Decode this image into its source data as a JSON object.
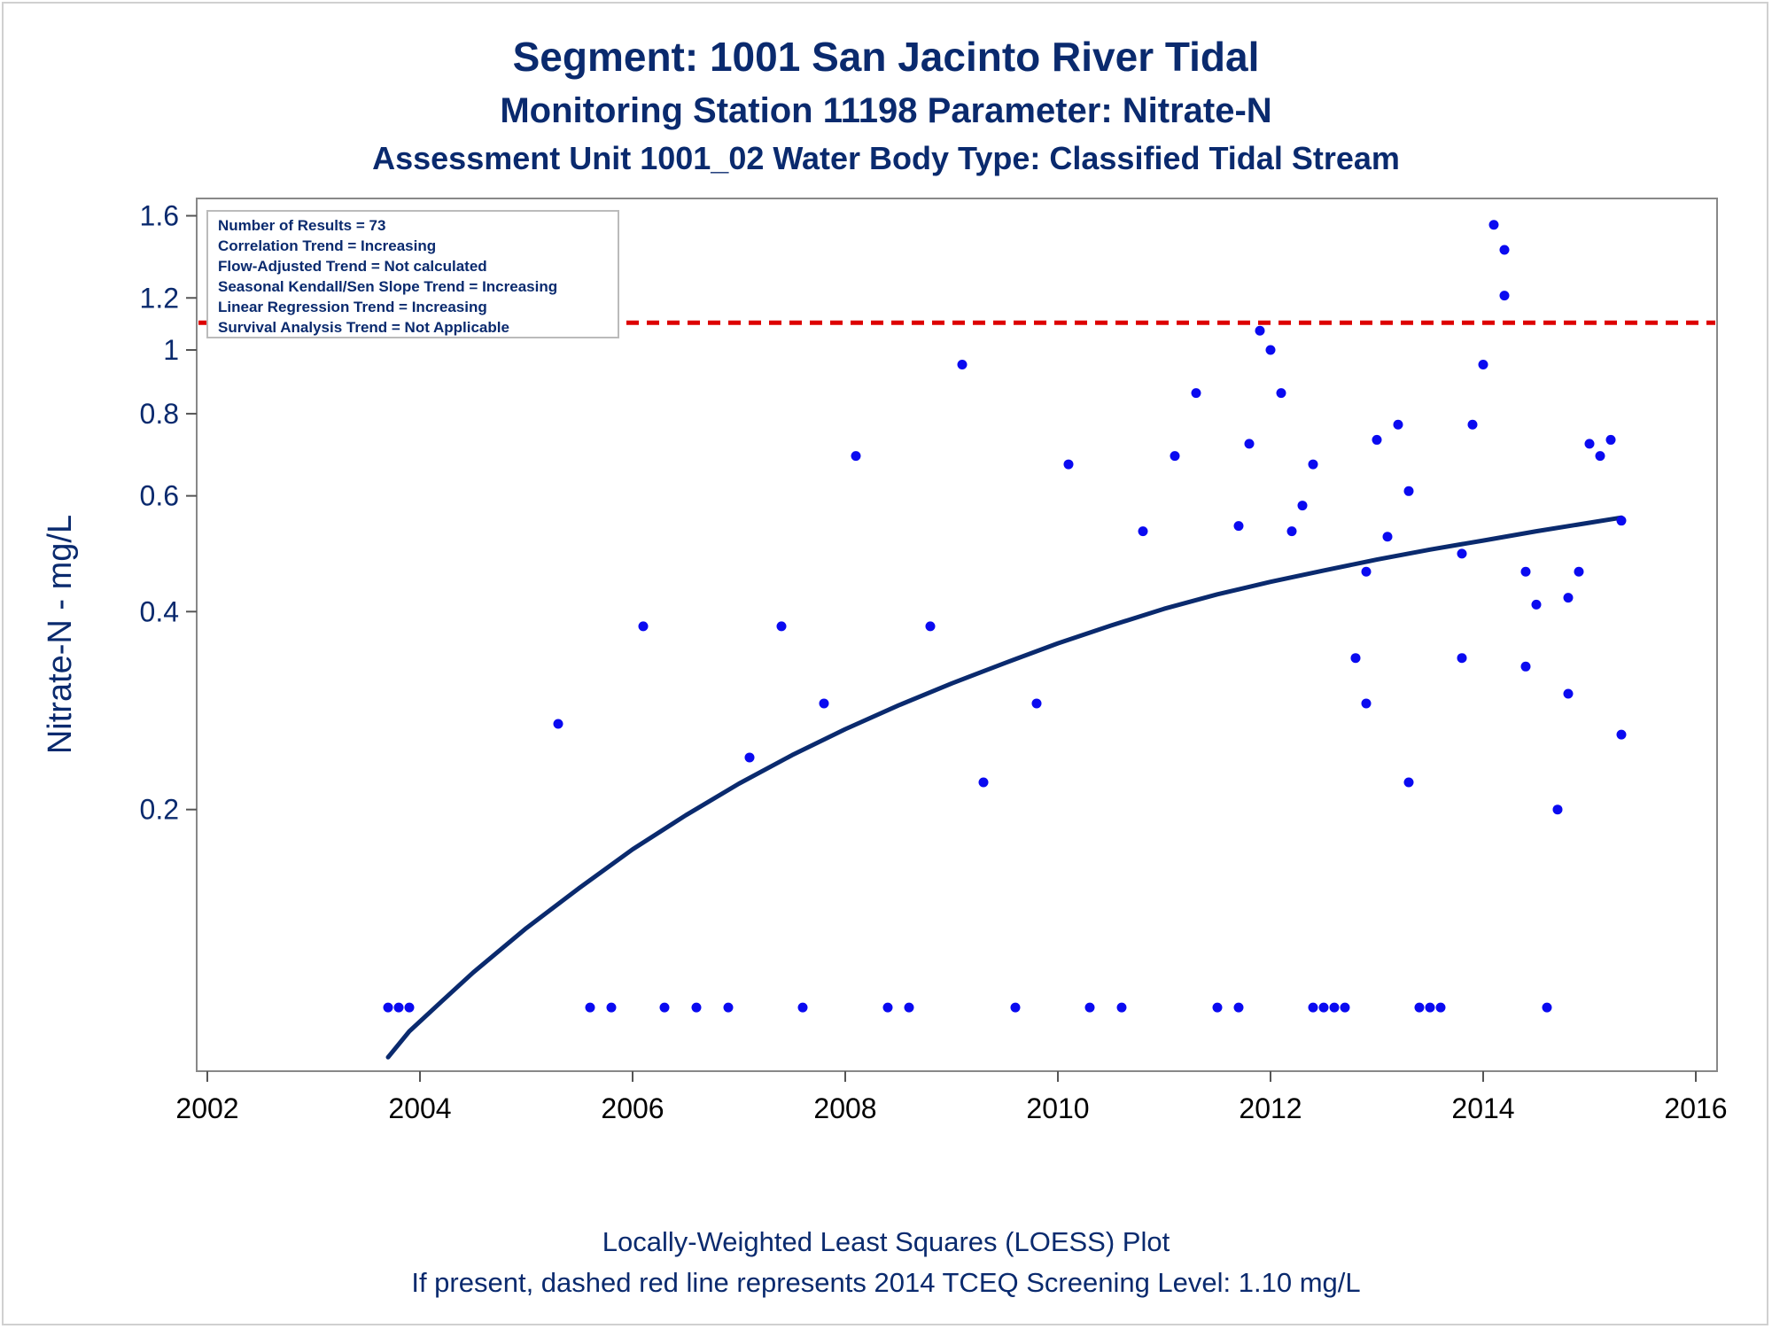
{
  "chart_data": {
    "type": "scatter",
    "title": "Segment: 1001  San Jacinto River Tidal",
    "subtitle": "Monitoring Station 11198 Parameter: Nitrate-N",
    "subtitle2": "Assessment Unit 1001_02   Water Body Type: Classified Tidal Stream",
    "ylabel": "Nitrate-N - mg/L",
    "xlabel": "",
    "x_scale": "linear",
    "y_scale": "log",
    "xlim": [
      2001.9,
      2016.2
    ],
    "ylim": [
      0.08,
      1.7
    ],
    "x_ticks": [
      2002,
      2004,
      2006,
      2008,
      2010,
      2012,
      2014,
      2016
    ],
    "x_tick_labels": [
      "2002",
      "2004",
      "2006",
      "2008",
      "2010",
      "2012",
      "2014",
      "2016"
    ],
    "y_ticks": [
      0.2,
      0.4,
      0.6,
      0.8,
      1.0,
      1.2,
      1.6
    ],
    "y_tick_labels": [
      "0.2",
      "0.4",
      "0.6",
      "0.8",
      "1",
      "1.2",
      "1.6"
    ],
    "grid": false,
    "legend_placement": "top-left",
    "stats_box": [
      "Number of Results = 73",
      "Correlation Trend = Increasing",
      "Flow-Adjusted Trend = Not calculated",
      "Seasonal Kendall/Sen Slope Trend = Increasing",
      "Linear Regression Trend = Increasing",
      "Survival Analysis Trend = Not Applicable"
    ],
    "reference_line": {
      "y": 1.1,
      "color": "#dd0000",
      "style": "dashed"
    },
    "series": [
      {
        "type": "scatter",
        "color": "#0a0af0",
        "points": [
          [
            2003.7,
            0.1
          ],
          [
            2003.8,
            0.1
          ],
          [
            2003.9,
            0.1
          ],
          [
            2005.3,
            0.27
          ],
          [
            2005.6,
            0.1
          ],
          [
            2005.8,
            0.1
          ],
          [
            2006.1,
            0.38
          ],
          [
            2006.3,
            0.1
          ],
          [
            2006.6,
            0.1
          ],
          [
            2006.9,
            0.1
          ],
          [
            2007.1,
            0.24
          ],
          [
            2007.4,
            0.38
          ],
          [
            2007.6,
            0.1
          ],
          [
            2007.8,
            0.29
          ],
          [
            2008.1,
            0.69
          ],
          [
            2008.4,
            0.1
          ],
          [
            2008.6,
            0.1
          ],
          [
            2008.8,
            0.38
          ],
          [
            2009.1,
            0.95
          ],
          [
            2009.3,
            0.22
          ],
          [
            2009.6,
            0.1
          ],
          [
            2009.8,
            0.29
          ],
          [
            2010.1,
            0.67
          ],
          [
            2010.3,
            0.1
          ],
          [
            2010.6,
            0.1
          ],
          [
            2010.8,
            0.53
          ],
          [
            2011.1,
            0.69
          ],
          [
            2011.3,
            0.86
          ],
          [
            2011.5,
            0.1
          ],
          [
            2011.7,
            0.1
          ],
          [
            2011.7,
            0.54
          ],
          [
            2011.8,
            0.72
          ],
          [
            2011.9,
            1.07
          ],
          [
            2012.0,
            1.0
          ],
          [
            2012.1,
            0.86
          ],
          [
            2012.2,
            0.53
          ],
          [
            2012.3,
            0.58
          ],
          [
            2012.4,
            0.67
          ],
          [
            2012.4,
            0.1
          ],
          [
            2012.5,
            0.1
          ],
          [
            2012.6,
            0.1
          ],
          [
            2012.7,
            0.1
          ],
          [
            2012.8,
            0.34
          ],
          [
            2012.9,
            0.29
          ],
          [
            2012.9,
            0.46
          ],
          [
            2013.0,
            0.73
          ],
          [
            2013.1,
            0.52
          ],
          [
            2013.2,
            0.77
          ],
          [
            2013.3,
            0.61
          ],
          [
            2013.3,
            0.22
          ],
          [
            2013.4,
            0.1
          ],
          [
            2013.5,
            0.1
          ],
          [
            2013.6,
            0.1
          ],
          [
            2013.8,
            0.34
          ],
          [
            2013.8,
            0.49
          ],
          [
            2013.9,
            0.77
          ],
          [
            2014.0,
            0.95
          ],
          [
            2014.1,
            1.55
          ],
          [
            2014.2,
            1.42
          ],
          [
            2014.2,
            1.21
          ],
          [
            2014.4,
            0.46
          ],
          [
            2014.4,
            0.33
          ],
          [
            2014.5,
            0.41
          ],
          [
            2014.6,
            0.1
          ],
          [
            2014.7,
            0.2
          ],
          [
            2014.8,
            0.3
          ],
          [
            2014.8,
            0.42
          ],
          [
            2014.9,
            0.46
          ],
          [
            2015.0,
            0.72
          ],
          [
            2015.1,
            0.69
          ],
          [
            2015.2,
            0.73
          ],
          [
            2015.3,
            0.55
          ],
          [
            2015.3,
            0.26
          ]
        ]
      },
      {
        "type": "line",
        "color": "#0a2a6e",
        "points": [
          [
            2003.7,
            0.084
          ],
          [
            2003.9,
            0.092
          ],
          [
            2004.2,
            0.102
          ],
          [
            2004.5,
            0.113
          ],
          [
            2005.0,
            0.132
          ],
          [
            2005.5,
            0.152
          ],
          [
            2006.0,
            0.174
          ],
          [
            2006.5,
            0.196
          ],
          [
            2007.0,
            0.219
          ],
          [
            2007.5,
            0.242
          ],
          [
            2008.0,
            0.265
          ],
          [
            2008.5,
            0.288
          ],
          [
            2009.0,
            0.311
          ],
          [
            2009.5,
            0.334
          ],
          [
            2010.0,
            0.358
          ],
          [
            2010.5,
            0.381
          ],
          [
            2011.0,
            0.404
          ],
          [
            2011.5,
            0.425
          ],
          [
            2012.0,
            0.444
          ],
          [
            2012.5,
            0.462
          ],
          [
            2013.0,
            0.48
          ],
          [
            2013.5,
            0.497
          ],
          [
            2014.0,
            0.513
          ],
          [
            2014.5,
            0.53
          ],
          [
            2015.0,
            0.546
          ],
          [
            2015.3,
            0.556
          ]
        ]
      }
    ]
  },
  "footer": {
    "line1": "Locally-Weighted Least Squares (LOESS) Plot",
    "line2": "If present, dashed red line represents 2014 TCEQ Screening Level: 1.10 mg/L"
  }
}
